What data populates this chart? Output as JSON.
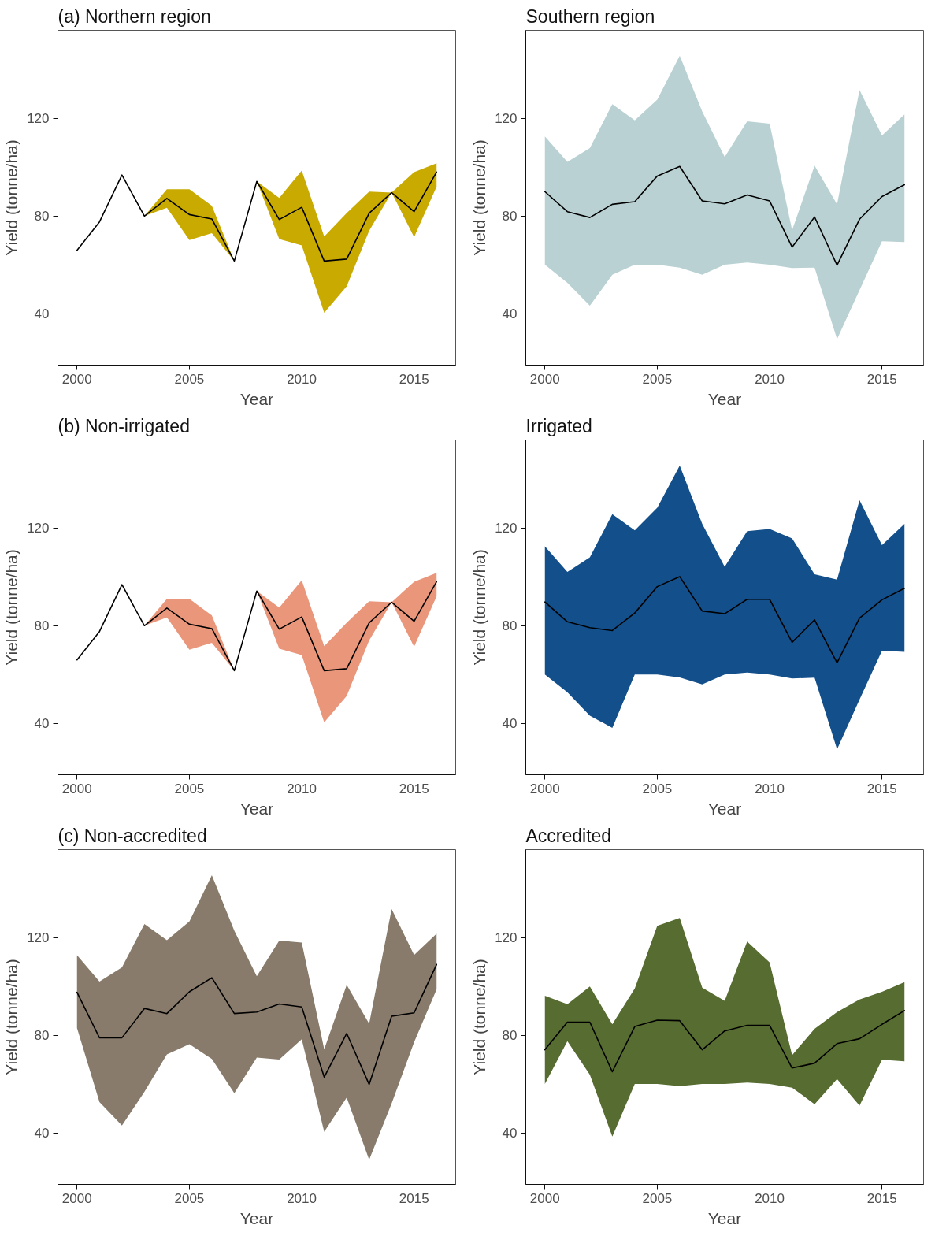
{
  "chart_data": [
    {
      "type": "line",
      "title": "(a) Northern region",
      "xlabel": "Year",
      "ylabel": "Yield (tonne/ha)",
      "x": [
        2000,
        2001,
        2002,
        2003,
        2004,
        2005,
        2006,
        2007,
        2008,
        2009,
        2010,
        2011,
        2012,
        2013,
        2014,
        2015,
        2016
      ],
      "xlim": [
        1999.15,
        2016.85
      ],
      "ylim": [
        19,
        156
      ],
      "xticks": [
        2000,
        2005,
        2010,
        2015
      ],
      "yticks": [
        40,
        80,
        120
      ],
      "grid": false,
      "series": [
        {
          "color": "#c8aa00",
          "values": [
            null,
            null,
            null,
            null,
            null,
            null,
            null,
            null,
            null,
            null,
            null,
            null,
            null,
            null,
            null,
            null,
            null
          ],
          "upper": [
            null,
            null,
            null,
            80,
            91,
            91,
            84.2,
            61.6,
            94.2,
            87.4,
            98.6,
            71.6,
            81.2,
            90,
            89.6,
            98,
            101.6
          ],
          "lower": [
            null,
            null,
            null,
            80,
            83.4,
            70.2,
            73,
            61.6,
            94.2,
            70.6,
            68,
            40.4,
            51.2,
            74,
            89.6,
            71.4,
            92
          ]
        },
        {
          "color": "#000000",
          "values": [
            66,
            77.6,
            96.8,
            80,
            87.2,
            80.6,
            78.8,
            61.6,
            94.2,
            78.6,
            83.6,
            61.6,
            62.4,
            81.2,
            89.6,
            81.8,
            98
          ]
        }
      ]
    },
    {
      "type": "line",
      "title": "Southern region",
      "xlabel": "Year",
      "ylabel": "Yield (tonne/ha)",
      "x": [
        2000,
        2001,
        2002,
        2003,
        2004,
        2005,
        2006,
        2007,
        2008,
        2009,
        2010,
        2011,
        2012,
        2013,
        2014,
        2015,
        2016
      ],
      "xlim": [
        1999.15,
        2016.85
      ],
      "ylim": [
        19,
        156
      ],
      "xticks": [
        2000,
        2005,
        2010,
        2015
      ],
      "yticks": [
        40,
        80,
        120
      ],
      "grid": false,
      "series": [
        {
          "color": "#b9d1d3",
          "values": [
            null,
            null,
            null,
            null,
            null,
            null,
            null,
            null,
            null,
            null,
            null,
            null,
            null,
            null,
            null,
            null,
            null
          ],
          "upper": [
            112.6,
            102.2,
            107.8,
            125.8,
            119.2,
            127.6,
            145.6,
            122.8,
            104.2,
            118.8,
            117.8,
            74.2,
            100.6,
            84.8,
            131.6,
            113,
            121.6
          ],
          "lower": [
            60.1,
            52.7,
            43.3,
            56,
            60.1,
            60.1,
            58.9,
            56,
            60.1,
            61,
            60.1,
            58.7,
            58.9,
            29.6,
            49.7,
            69.7,
            69.4
          ]
        },
        {
          "color": "#000000",
          "values": [
            90,
            81.8,
            79.4,
            84.8,
            85.9,
            96.4,
            100.3,
            86.2,
            85,
            88.6,
            86.2,
            67.3,
            79.6,
            59.9,
            78.7,
            88,
            92.8
          ]
        }
      ]
    },
    {
      "type": "line",
      "title": "(b) Non-irrigated",
      "xlabel": "Year",
      "ylabel": "Yield (tonne/ha)",
      "x": [
        2000,
        2001,
        2002,
        2003,
        2004,
        2005,
        2006,
        2007,
        2008,
        2009,
        2010,
        2011,
        2012,
        2013,
        2014,
        2015,
        2016
      ],
      "xlim": [
        1999.15,
        2016.85
      ],
      "ylim": [
        19,
        156
      ],
      "xticks": [
        2000,
        2005,
        2010,
        2015
      ],
      "yticks": [
        40,
        80,
        120
      ],
      "grid": false,
      "series": [
        {
          "color": "#e9967b",
          "values": [
            null,
            null,
            null,
            null,
            null,
            null,
            null,
            null,
            null,
            null,
            null,
            null,
            null,
            null,
            null,
            null,
            null
          ],
          "upper": [
            null,
            null,
            null,
            80,
            91,
            91,
            84.2,
            61.6,
            94.2,
            87.4,
            98.6,
            71.6,
            81.2,
            90,
            89.6,
            98,
            101.6
          ],
          "lower": [
            null,
            null,
            null,
            80,
            83.4,
            70.2,
            73,
            61.6,
            94.2,
            70.6,
            68,
            40.4,
            51.2,
            74,
            89.6,
            71.4,
            92
          ]
        },
        {
          "color": "#000000",
          "values": [
            66,
            77.6,
            96.8,
            80,
            87.2,
            80.6,
            78.8,
            61.6,
            94.2,
            78.6,
            83.6,
            61.6,
            62.4,
            81.2,
            89.6,
            81.8,
            98
          ]
        }
      ]
    },
    {
      "type": "line",
      "title": "Irrigated",
      "xlabel": "Year",
      "ylabel": "Yield (tonne/ha)",
      "x": [
        2000,
        2001,
        2002,
        2003,
        2004,
        2005,
        2006,
        2007,
        2008,
        2009,
        2010,
        2011,
        2012,
        2013,
        2014,
        2015,
        2016
      ],
      "xlim": [
        1999.15,
        2016.85
      ],
      "ylim": [
        19,
        156
      ],
      "xticks": [
        2000,
        2005,
        2010,
        2015
      ],
      "yticks": [
        40,
        80,
        120
      ],
      "grid": false,
      "series": [
        {
          "color": "#124f8b",
          "values": [
            null,
            null,
            null,
            null,
            null,
            null,
            null,
            null,
            null,
            null,
            null,
            null,
            null,
            null,
            null,
            null,
            null
          ],
          "upper": [
            112.5,
            102,
            108,
            125.6,
            119,
            128.3,
            145.5,
            121.7,
            104.1,
            118.7,
            119.6,
            115.7,
            101,
            98.9,
            131.3,
            113,
            121.7
          ],
          "lower": [
            60,
            52.8,
            43.2,
            38.2,
            60,
            60,
            58.8,
            56,
            60,
            60.8,
            60,
            58.4,
            58.7,
            29.4,
            49.8,
            69.8,
            69.3
          ]
        },
        {
          "color": "#000000",
          "values": [
            89.7,
            81.6,
            79.2,
            78,
            85.2,
            96,
            100.1,
            86,
            84.9,
            90.8,
            90.8,
            73.2,
            82.4,
            64.8,
            83.1,
            90.6,
            95.3
          ]
        }
      ]
    },
    {
      "type": "line",
      "title": "(c) Non-accredited",
      "xlabel": "Year",
      "ylabel": "Yield (tonne/ha)",
      "x": [
        2000,
        2001,
        2002,
        2003,
        2004,
        2005,
        2006,
        2007,
        2008,
        2009,
        2010,
        2011,
        2012,
        2013,
        2014,
        2015,
        2016
      ],
      "xlim": [
        1999.15,
        2016.85
      ],
      "ylim": [
        19,
        156
      ],
      "xticks": [
        2000,
        2005,
        2010,
        2015
      ],
      "yticks": [
        40,
        80,
        120
      ],
      "grid": false,
      "series": [
        {
          "color": "#887b6b",
          "values": [
            null,
            null,
            null,
            null,
            null,
            null,
            null,
            null,
            null,
            null,
            null,
            null,
            null,
            null,
            null,
            null,
            null
          ],
          "upper": [
            112.8,
            102,
            107.8,
            125.5,
            118.9,
            126.6,
            145.5,
            122.8,
            104.2,
            118.8,
            118,
            74.3,
            100.6,
            84.8,
            131.7,
            112.9,
            121.6
          ],
          "lower": [
            83,
            52.7,
            43.1,
            56.9,
            72.2,
            76.4,
            70.3,
            56.3,
            70.9,
            70.1,
            78.4,
            40.5,
            54.5,
            29.1,
            52.1,
            77.2,
            98.8
          ]
        },
        {
          "color": "#000000",
          "values": [
            97.6,
            79,
            79,
            91,
            88.9,
            97.8,
            103.6,
            88.9,
            89.5,
            92.8,
            91.6,
            62.9,
            80.8,
            59.9,
            87.8,
            89.2,
            109
          ]
        }
      ]
    },
    {
      "type": "line",
      "title": "Accredited",
      "xlabel": "Year",
      "ylabel": "Yield (tonne/ha)",
      "x": [
        2000,
        2001,
        2002,
        2003,
        2004,
        2005,
        2006,
        2007,
        2008,
        2009,
        2010,
        2011,
        2012,
        2013,
        2014,
        2015,
        2016
      ],
      "xlim": [
        1999.15,
        2016.85
      ],
      "ylim": [
        19,
        156
      ],
      "xticks": [
        2000,
        2005,
        2010,
        2015
      ],
      "yticks": [
        40,
        80,
        120
      ],
      "grid": false,
      "series": [
        {
          "color": "#566c31",
          "values": [
            null,
            null,
            null,
            null,
            null,
            null,
            null,
            null,
            null,
            null,
            null,
            null,
            null,
            null,
            null,
            null,
            null
          ],
          "upper": [
            96.2,
            92.7,
            100,
            84.5,
            99.2,
            124.8,
            128,
            99.5,
            94.1,
            118.4,
            109.8,
            71.9,
            82.7,
            89.5,
            94.7,
            97.8,
            101.8
          ],
          "lower": [
            60.1,
            77.6,
            63.9,
            38.6,
            60.1,
            60.1,
            59.2,
            60.1,
            60.1,
            60.7,
            60.1,
            58.6,
            51.8,
            62.1,
            51.2,
            70,
            69.4
          ]
        },
        {
          "color": "#000000",
          "values": [
            74.1,
            85.4,
            85.4,
            65.1,
            83.6,
            86.2,
            86,
            74.1,
            81.8,
            84.1,
            84.1,
            66.6,
            68.6,
            76.6,
            78.6,
            84.5,
            90.1
          ]
        }
      ]
    }
  ]
}
